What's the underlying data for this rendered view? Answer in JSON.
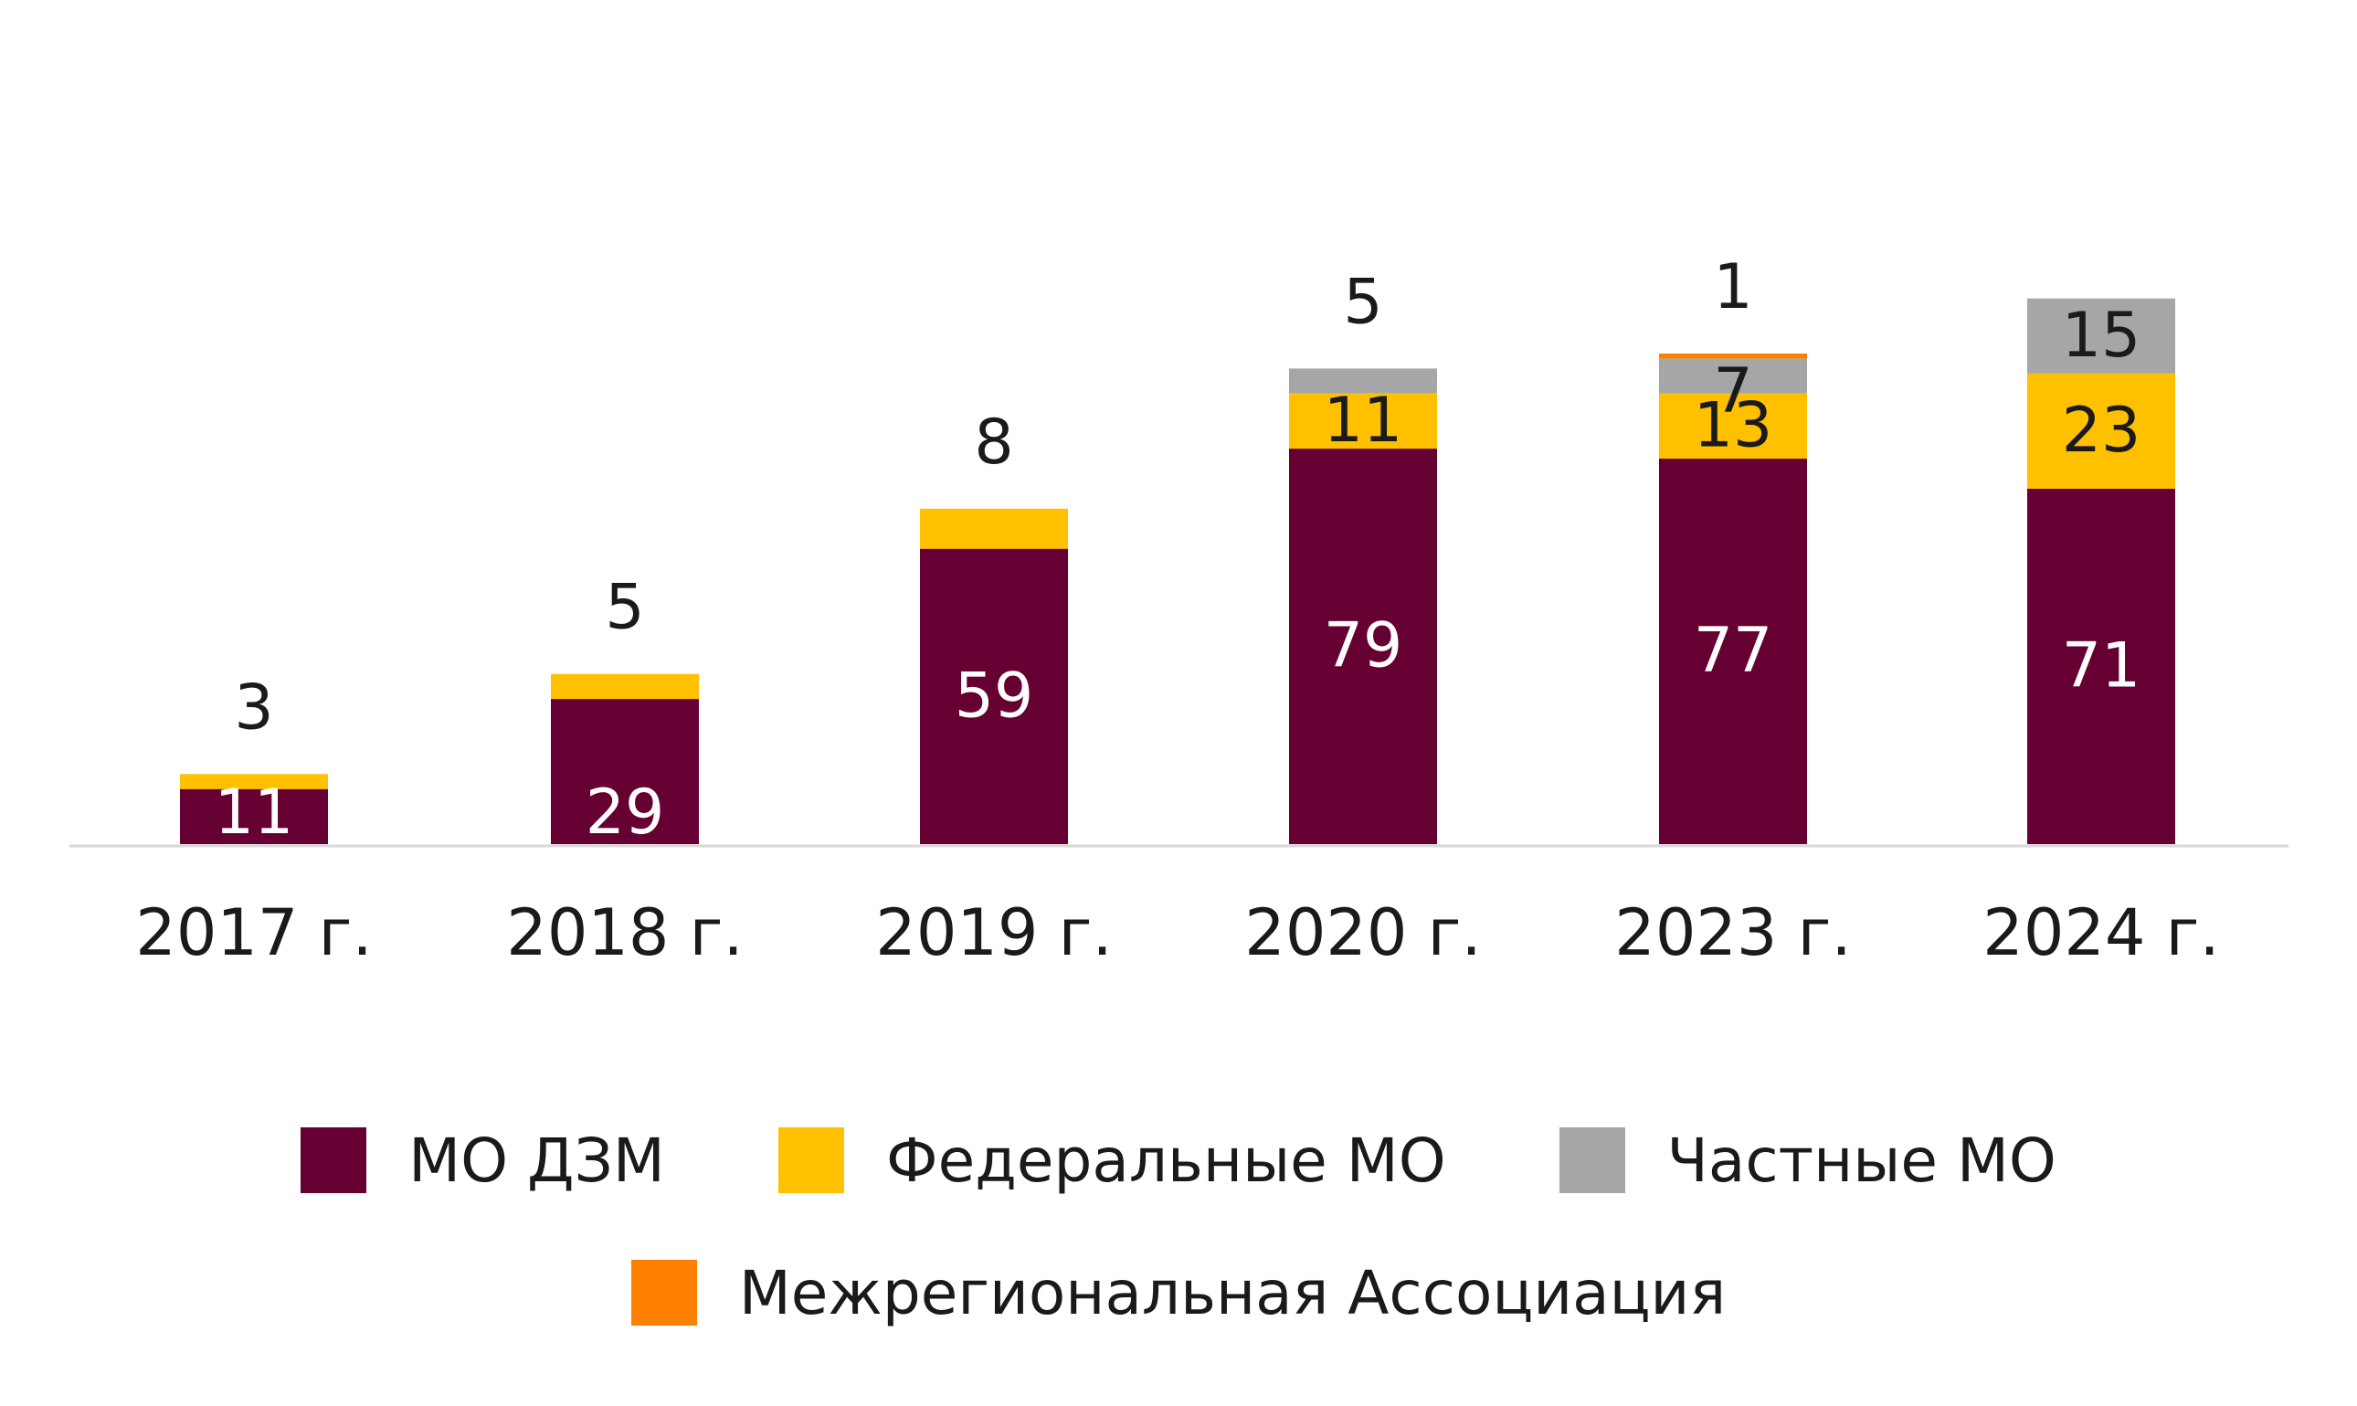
{
  "chart_data": {
    "type": "bar",
    "stacked": true,
    "categories": [
      "2017 г.",
      "2018 г.",
      "2019 г.",
      "2020 г.",
      "2023 г.",
      "2024 г."
    ],
    "series": [
      {
        "name": "МО ДЗМ",
        "color": "#660033",
        "values": [
          11,
          29,
          59,
          79,
          77,
          71
        ],
        "labels": [
          "11",
          "29",
          "59",
          "79",
          "77",
          "71"
        ]
      },
      {
        "name": "Федеральные МО",
        "color": "#FFC000",
        "values": [
          3,
          5,
          8,
          11,
          13,
          23
        ],
        "labels": [
          "3",
          "5",
          "8",
          "11",
          "13",
          "23"
        ]
      },
      {
        "name": "Частные МО",
        "color": "#A6A6A6",
        "values": [
          0,
          0,
          0,
          5,
          7,
          15
        ],
        "labels": [
          "",
          "",
          "",
          "5",
          "7",
          "15"
        ]
      },
      {
        "name": "Межрегиональная Ассоциация",
        "color": "#FF8000",
        "values": [
          0,
          0,
          0,
          0,
          1,
          0
        ],
        "labels": [
          "",
          "",
          "",
          "",
          "1",
          ""
        ]
      }
    ],
    "ylim": [
      0,
      110
    ],
    "grid": false,
    "legend_position": "bottom"
  }
}
